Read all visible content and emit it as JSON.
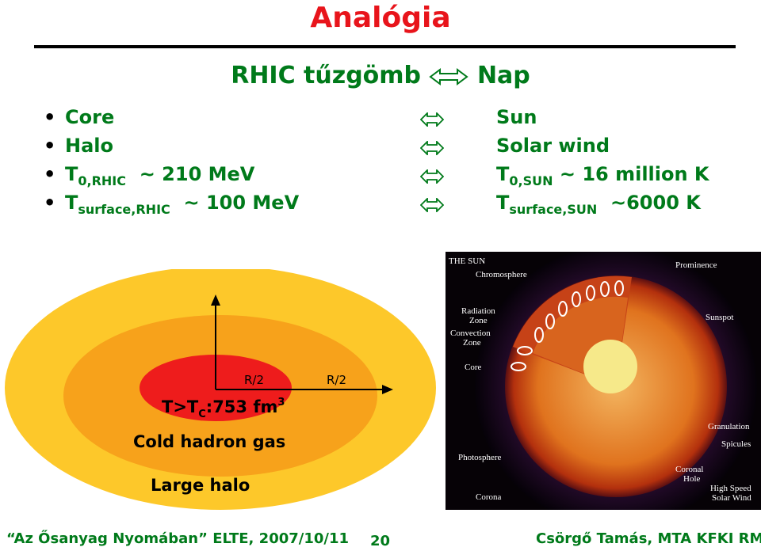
{
  "title": "Analógia",
  "subtitle": "RHIC tűzgömb ⇔ Nap",
  "subtitle_main": "RHIC tűzgömb",
  "subtitle_end": "Nap",
  "bullet_symbol": "•",
  "rows": [
    {
      "left": "Core",
      "left_sub": "",
      "left_value": "",
      "right": "Sun",
      "right_sub": "",
      "right_value": ""
    },
    {
      "left": "Halo",
      "left_sub": "",
      "left_value": "",
      "right": "Solar wind",
      "right_sub": "",
      "right_value": ""
    },
    {
      "left": "T",
      "left_sub": "0,RHIC",
      "left_value": "~ 210 MeV",
      "right": "T",
      "right_sub": "0,SUN",
      "right_value": "~ 16 million K"
    },
    {
      "left": "T",
      "left_sub": "surface,RHIC",
      "left_value": "~ 100 MeV",
      "right": "T",
      "right_sub": "surface,SUN",
      "right_value": "~6000 K"
    }
  ],
  "diagram": {
    "r_label_1": "R/2",
    "r_label_2": "R/2",
    "core_label": "T>T",
    "core_sub": "C",
    "core_value": ":753 fm",
    "core_sup": "3",
    "middle_label": "Cold hadron gas",
    "outer_label": "Large halo",
    "colors": {
      "outer": "#fdc82a",
      "middle": "#f7a21b",
      "core": "#ee1c1c"
    }
  },
  "sun_image": {
    "title": "THE SUN",
    "labels": {
      "chromosphere": "Chromosphere",
      "prominence": "Prominence",
      "radiation_zone": "Radiation Zone",
      "convection_zone": "Convection Zone",
      "sunspot": "Sunspot",
      "core": "Core",
      "granulation": "Granulation",
      "spicules": "Spicules",
      "photosphere": "Photosphere",
      "coronal_hole": "Coronal Hole",
      "high_speed_solar_wind": "High Speed Solar Wind",
      "corona": "Corona"
    }
  },
  "footer": {
    "left": "“Az Ősanyag Nyomában” ELTE, 2007/10/11",
    "page": "20",
    "right": "Csörgő Tamás, MTA KFKI RMKI"
  },
  "colors": {
    "title": "#e8141b",
    "text": "#007a1a"
  }
}
